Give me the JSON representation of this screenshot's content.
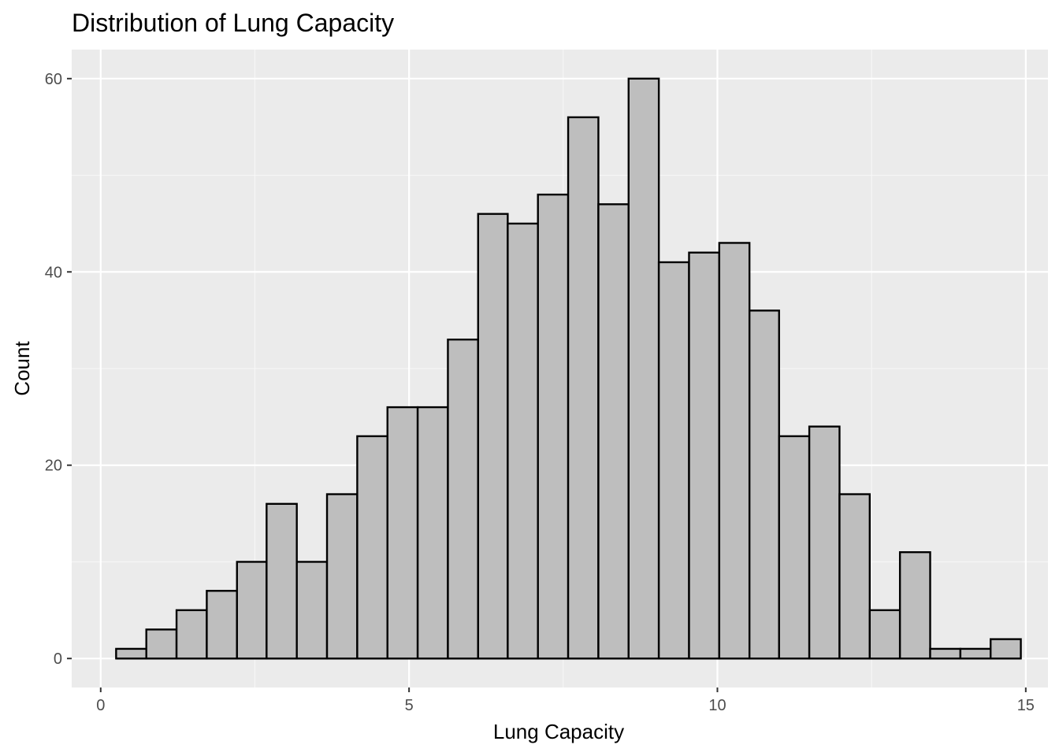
{
  "chart_data": {
    "type": "bar",
    "subtype": "histogram",
    "title": "Distribution of Lung Capacity",
    "xlabel": "Lung Capacity",
    "ylabel": "Count",
    "xlim": [
      -0.47,
      15.36
    ],
    "ylim": [
      -3,
      63
    ],
    "x_ticks": [
      0,
      5,
      10,
      15
    ],
    "x_tick_labels": [
      "0",
      "5",
      "10",
      "15"
    ],
    "y_ticks": [
      0,
      20,
      40,
      60
    ],
    "y_tick_labels": [
      "0",
      "20",
      "40",
      "60"
    ],
    "grid": true,
    "legend": "none",
    "bin_width": 0.488,
    "bins": [
      {
        "x0": 0.25,
        "x1": 0.74,
        "count": 1
      },
      {
        "x0": 0.74,
        "x1": 1.23,
        "count": 3
      },
      {
        "x0": 1.23,
        "x1": 1.72,
        "count": 5
      },
      {
        "x0": 1.72,
        "x1": 2.21,
        "count": 7
      },
      {
        "x0": 2.21,
        "x1": 2.69,
        "count": 10
      },
      {
        "x0": 2.69,
        "x1": 3.18,
        "count": 16
      },
      {
        "x0": 3.18,
        "x1": 3.67,
        "count": 10
      },
      {
        "x0": 3.67,
        "x1": 4.16,
        "count": 17
      },
      {
        "x0": 4.16,
        "x1": 4.65,
        "count": 23
      },
      {
        "x0": 4.65,
        "x1": 5.14,
        "count": 26
      },
      {
        "x0": 5.14,
        "x1": 5.63,
        "count": 26
      },
      {
        "x0": 5.63,
        "x1": 6.12,
        "count": 33
      },
      {
        "x0": 6.12,
        "x1": 6.6,
        "count": 46
      },
      {
        "x0": 6.6,
        "x1": 7.09,
        "count": 45
      },
      {
        "x0": 7.09,
        "x1": 7.58,
        "count": 48
      },
      {
        "x0": 7.58,
        "x1": 8.07,
        "count": 56
      },
      {
        "x0": 8.07,
        "x1": 8.56,
        "count": 47
      },
      {
        "x0": 8.56,
        "x1": 9.05,
        "count": 60
      },
      {
        "x0": 9.05,
        "x1": 9.54,
        "count": 41
      },
      {
        "x0": 9.54,
        "x1": 10.03,
        "count": 42
      },
      {
        "x0": 10.03,
        "x1": 10.52,
        "count": 43
      },
      {
        "x0": 10.52,
        "x1": 11.0,
        "count": 36
      },
      {
        "x0": 11.0,
        "x1": 11.49,
        "count": 23
      },
      {
        "x0": 11.49,
        "x1": 11.98,
        "count": 24
      },
      {
        "x0": 11.98,
        "x1": 12.47,
        "count": 17
      },
      {
        "x0": 12.47,
        "x1": 12.96,
        "count": 5
      },
      {
        "x0": 12.96,
        "x1": 13.45,
        "count": 11
      },
      {
        "x0": 13.45,
        "x1": 13.94,
        "count": 1
      },
      {
        "x0": 13.94,
        "x1": 14.43,
        "count": 1
      },
      {
        "x0": 14.43,
        "x1": 14.92,
        "count": 2
      }
    ],
    "colors": {
      "panel_background": "#ebebeb",
      "grid_major": "#ffffff",
      "grid_minor": "#f7f7f7",
      "bar_fill": "#bebebe",
      "bar_outline": "#000000",
      "tick_label": "#4d4d4d",
      "tick_mark": "#333333"
    }
  }
}
